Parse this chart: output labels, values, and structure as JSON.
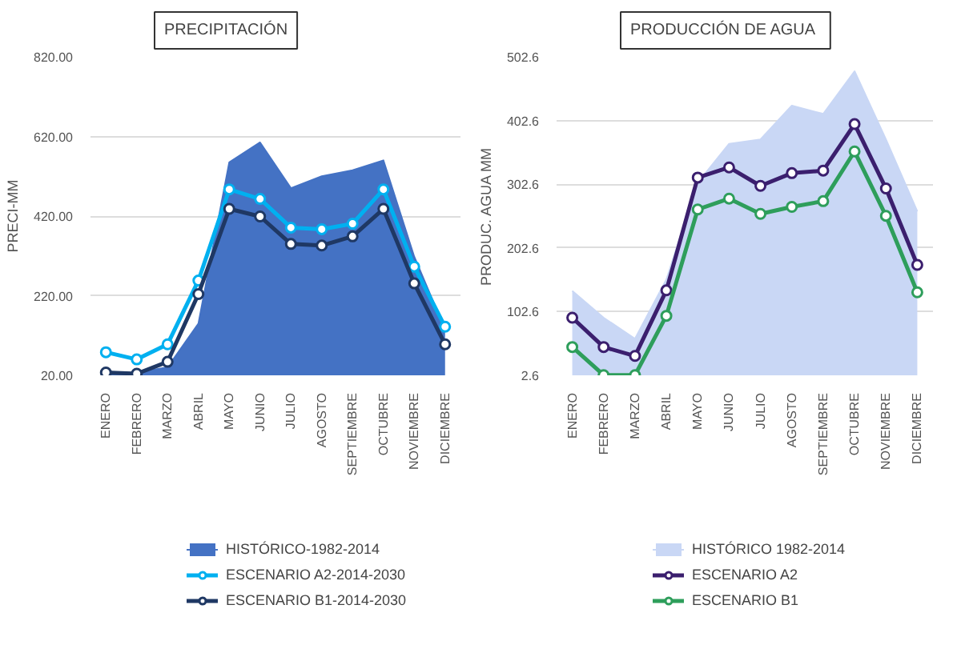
{
  "chart_data": [
    {
      "type": "line",
      "title": "PRECIPITACIÓN",
      "ylabel": "PRECI-MM",
      "categories": [
        "ENERO",
        "FEBRERO",
        "MARZO",
        "ABRIL",
        "MAYO",
        "JUNIO",
        "JULIO",
        "AGOSTO",
        "SEPTIEMBRE",
        "OCTUBRE",
        "NOVIEMBRE",
        "DICIEMBRE"
      ],
      "ylim": [
        20,
        820
      ],
      "yticks": [
        {
          "value": 20,
          "label": "20.00"
        },
        {
          "value": 220,
          "label": "220.00"
        },
        {
          "value": 420,
          "label": "420.00"
        },
        {
          "value": 620,
          "label": "620.00"
        },
        {
          "value": 820,
          "label": "820.00"
        }
      ],
      "grid": "y",
      "legend": "bottom",
      "series": [
        {
          "name": "HISTÓRICO-1982-2014",
          "type": "area",
          "color": "#4472c4",
          "values": [
            25,
            27,
            40,
            150,
            555,
            605,
            490,
            520,
            535,
            560,
            318,
            135
          ]
        },
        {
          "name": "ESCENARIO A2-2014-2030",
          "color": "#00b0f0",
          "marker": "circle",
          "values": [
            78,
            60,
            98,
            258,
            487,
            463,
            391,
            387,
            401,
            487,
            293,
            142
          ]
        },
        {
          "name": "ESCENARIO B1-2014-2030",
          "color": "#1f3864",
          "marker": "circle",
          "values": [
            27,
            24,
            54,
            224,
            438,
            419,
            350,
            346,
            369,
            438,
            251,
            98
          ]
        }
      ]
    },
    {
      "type": "line",
      "title": "PRODUCCIÓN  DE AGUA",
      "ylabel": "PRODUC. AGUA MM",
      "categories": [
        "ENERO",
        "FEBRERO",
        "MARZO",
        "ABRIL",
        "MAYO",
        "JUNIO",
        "JULIO",
        "AGOSTO",
        "SEPTIEMBRE",
        "OCTUBRE",
        "NOVIEMBRE",
        "DICIEMBRE"
      ],
      "ylim": [
        2.6,
        502.6
      ],
      "yticks": [
        2.6,
        102.6,
        202.6,
        302.6,
        402.6,
        502.6
      ],
      "grid": "y",
      "legend": "bottom",
      "series": [
        {
          "name": "HISTÓRICO 1982-2014",
          "type": "area",
          "color": "#c9d7f5",
          "values": [
            135,
            93,
            60,
            153,
            305,
            366,
            373,
            426,
            413,
            480,
            373,
            260
          ]
        },
        {
          "name": "ESCENARIO A2",
          "color": "#3b1f6e",
          "marker": "circle",
          "values": [
            93,
            47,
            33,
            136,
            313,
            329,
            300,
            320,
            324,
            397,
            296,
            176
          ]
        },
        {
          "name": "ESCENARIO B1",
          "color": "#2e9e5b",
          "marker": "circle",
          "values": [
            47,
            3,
            3,
            96,
            263,
            280,
            256,
            267,
            276,
            354,
            253,
            133
          ]
        }
      ]
    }
  ]
}
